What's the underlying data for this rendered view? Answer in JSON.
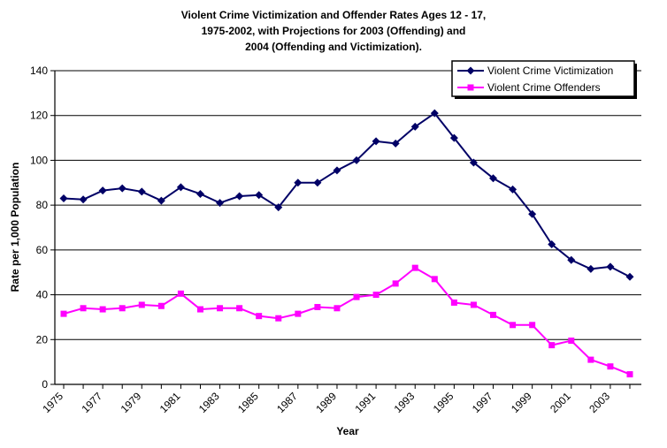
{
  "chart_data": {
    "type": "line",
    "title_lines": [
      "Violent Crime Victimization and Offender Rates Ages 12 - 17,",
      "1975-2002, with Projections for 2003 (Offending) and",
      "2004 (Offending and Victimization)."
    ],
    "xlabel": "Year",
    "ylabel": "Rate per 1,000 Population",
    "ylim": [
      0,
      140
    ],
    "yticks": [
      0,
      20,
      40,
      60,
      80,
      100,
      120,
      140
    ],
    "x": [
      1975,
      1976,
      1977,
      1978,
      1979,
      1980,
      1981,
      1982,
      1983,
      1984,
      1985,
      1986,
      1987,
      1988,
      1989,
      1990,
      1991,
      1992,
      1993,
      1994,
      1995,
      1996,
      1997,
      1998,
      1999,
      2000,
      2001,
      2002,
      2003,
      2004
    ],
    "xtick_labels": [
      "1975",
      "1977",
      "1979",
      "1981",
      "1983",
      "1985",
      "1987",
      "1989",
      "1991",
      "1993",
      "1995",
      "1997",
      "1999",
      "2001",
      "2003"
    ],
    "grid": true,
    "legend_position": "top-right",
    "series": [
      {
        "name": "Violent Crime Victimization",
        "color": "#000066",
        "marker": "diamond",
        "values": [
          83,
          82.5,
          86.5,
          87.5,
          86,
          82,
          88,
          85,
          81,
          84,
          84.5,
          79,
          90,
          90,
          95.5,
          100,
          108.5,
          107.5,
          115,
          121,
          110,
          99,
          92,
          87,
          76,
          62.5,
          55.5,
          51.5,
          52.5,
          48
        ]
      },
      {
        "name": "Violent Crime Offenders",
        "color": "#FF00FF",
        "marker": "square",
        "values": [
          31.5,
          34,
          33.5,
          34,
          35.5,
          35,
          40.5,
          33.5,
          34,
          34,
          30.5,
          29.5,
          31.5,
          34.5,
          34,
          39,
          40,
          45,
          52,
          47,
          36.5,
          35.5,
          31,
          26.5,
          26.5,
          17.5,
          19.5,
          11,
          8,
          4.5
        ]
      }
    ]
  }
}
